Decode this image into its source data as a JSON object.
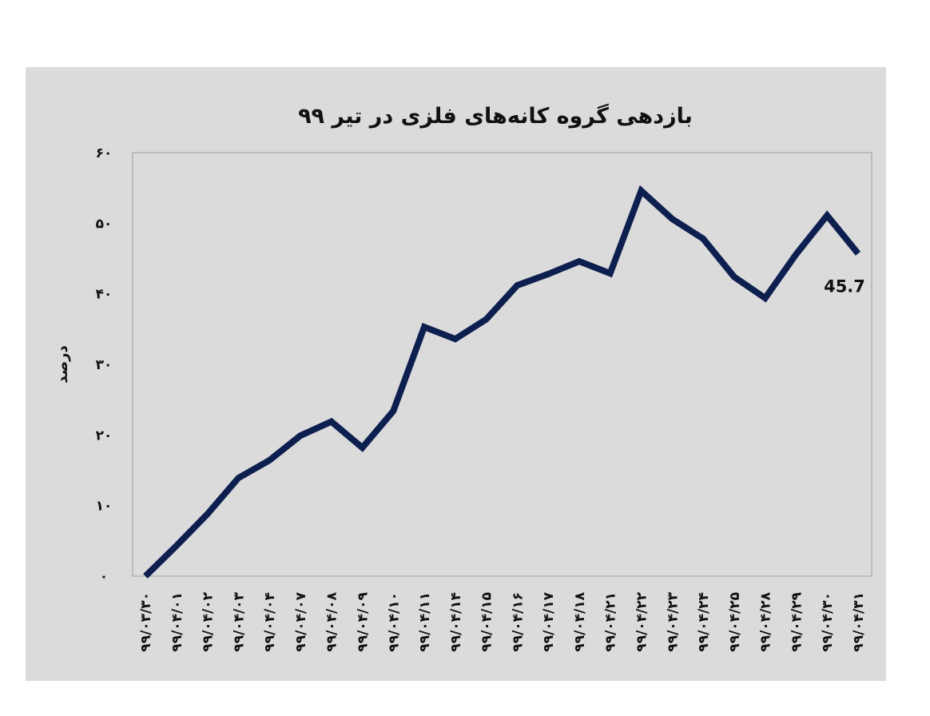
{
  "chart_data": {
    "type": "line",
    "title": "بازدهی گروه کانه‌های فلزی در تیر ۹۹",
    "ylabel": "درصد",
    "xlabel": "",
    "ylim": [
      0,
      60
    ],
    "yticks": [
      0,
      10,
      20,
      30,
      40,
      50,
      60
    ],
    "ytick_labels": [
      "۰",
      "۱۰",
      "۲۰",
      "۳۰",
      "۴۰",
      "۵۰",
      "۶۰"
    ],
    "grid": false,
    "categories": [
      "۹۹/۰۳/۳۰",
      "۹۹/۰۴/۰۱",
      "۹۹/۰۴/۰۲",
      "۹۹/۰۴/۰۳",
      "۹۹/۰۴/۰۴",
      "۹۹/۰۴/۰۷",
      "۹۹/۰۴/۰۸",
      "۹۹/۰۴/۰۹",
      "۹۹/۰۴/۱۰",
      "۹۹/۰۴/۱۱",
      "۹۹/۰۴/۱۴",
      "۹۹/۰۴/۱۵",
      "۹۹/۰۴/۱۶",
      "۹۹/۰۴/۱۷",
      "۹۹/۰۴/۱۸",
      "۹۹/۰۴/۲۱",
      "۹۹/۰۴/۲۲",
      "۹۹/۰۴/۲۳",
      "۹۹/۰۴/۲۴",
      "۹۹/۰۴/۲۵",
      "۹۹/۰۴/۲۸",
      "۹۹/۰۴/۲۹",
      "۹۹/۰۴/۳۰",
      "۹۹/۰۴/۳۱"
    ],
    "series": [
      {
        "values": [
          0,
          4.3,
          8.8,
          13.9,
          16.4,
          19.9,
          21.9,
          18.2,
          23.4,
          35.3,
          33.6,
          36.4,
          41.2,
          42.8,
          44.6,
          42.9,
          54.6,
          50.6,
          47.8,
          42.4,
          39.4,
          45.6,
          51.1,
          45.7
        ],
        "color": "#0d1f4f"
      }
    ],
    "annotations": [
      {
        "category_index": 23,
        "text": "45.7"
      }
    ]
  }
}
